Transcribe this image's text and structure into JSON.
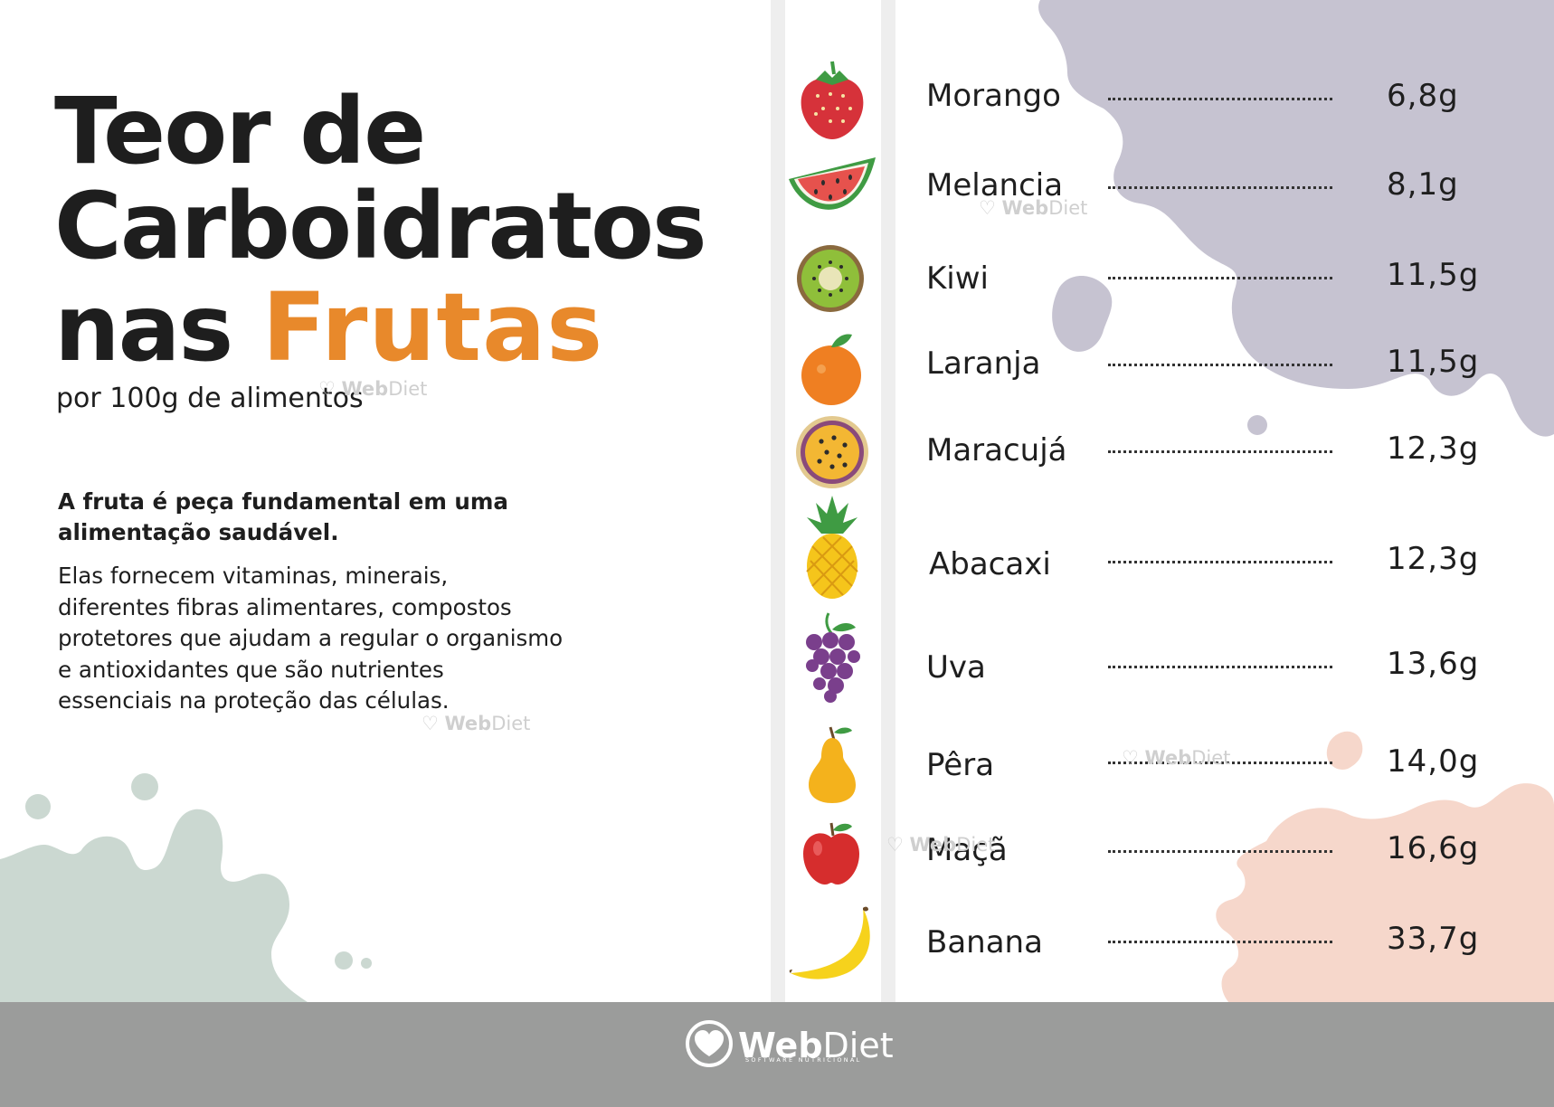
{
  "title": {
    "line1": "Teor de",
    "line2": "Carboidratos",
    "line3_prefix": "nas",
    "line3_highlight": "Frutas",
    "subtitle": "por 100g de alimentos"
  },
  "intro": {
    "lead": "A fruta é peça fundamental em uma alimentação saudável.",
    "body": "Elas fornecem vitaminas, minerais, diferentes fibras alimentares, compostos protetores que ajudam a regular o organismo e antioxidantes que são nutrientes essenciais na proteção das células."
  },
  "fruits": [
    {
      "name": "Morango",
      "value": "6,8g",
      "icon": "strawberry-icon"
    },
    {
      "name": "Melancia",
      "value": "8,1g",
      "icon": "watermelon-icon"
    },
    {
      "name": "Kiwi",
      "value": "11,5g",
      "icon": "kiwi-icon"
    },
    {
      "name": "Laranja",
      "value": "11,5g",
      "icon": "orange-icon"
    },
    {
      "name": "Maracujá",
      "value": "12,3g",
      "icon": "passion-fruit-icon"
    },
    {
      "name": "Abacaxi",
      "value": "12,3g",
      "icon": "pineapple-icon"
    },
    {
      "name": "Uva",
      "value": "13,6g",
      "icon": "grapes-icon"
    },
    {
      "name": "Pêra",
      "value": "14,0g",
      "icon": "pear-icon"
    },
    {
      "name": "Maçã",
      "value": "16,6g",
      "icon": "apple-icon"
    },
    {
      "name": "Banana",
      "value": "33,7g",
      "icon": "banana-icon"
    }
  ],
  "watermark": {
    "bold": "Web",
    "light": "Diet"
  },
  "footer": {
    "brand_bold": "Web",
    "brand_light": "Diet",
    "tagline": "SOFTWARE NUTRICIONAL"
  },
  "colors": {
    "accent": "#e8892b",
    "text": "#1e1e1e",
    "footer_bg": "#9b9c9b",
    "lavender_splash": "#c6c3d1",
    "green_splash": "#cbd8d1",
    "peach_splash": "#f6d7cb"
  }
}
